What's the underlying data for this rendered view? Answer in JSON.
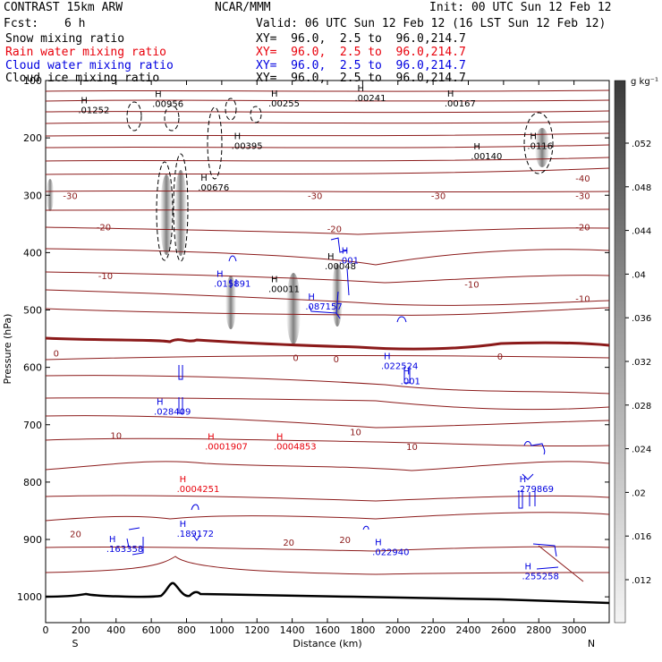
{
  "header": {
    "model": "CONTRAST 15km ARW",
    "center": "NCAR/MMM",
    "init": "Init: 00 UTC Sun 12 Feb 12",
    "fcst_label": "Fcst:",
    "fcst_value": "6 h",
    "valid": "Valid: 06 UTC Sun 12 Feb 12 (16 LST Sun 12 Feb 12)",
    "fields": [
      {
        "name": "Snow mixing ratio",
        "color": "#000000",
        "xy": "XY=  96.0,  2.5 to  96.0,214.7"
      },
      {
        "name": "Rain water mixing ratio",
        "color": "#e8000b",
        "xy": "XY=  96.0,  2.5 to  96.0,214.7"
      },
      {
        "name": "Cloud water mixing ratio",
        "color": "#0000e0",
        "xy": "XY=  96.0,  2.5 to  96.0,214.7"
      },
      {
        "name": "Cloud ice mixing ratio",
        "color": "#000000",
        "xy": "XY=  96.0,  2.5 to  96.0,214.7"
      }
    ]
  },
  "chart_data": {
    "type": "cross-section",
    "xlabel": "Distance (km)",
    "ylabel": "Pressure (hPa)",
    "x_ticks": [
      0,
      200,
      400,
      600,
      800,
      1000,
      1200,
      1400,
      1600,
      1800,
      2000,
      2200,
      2400,
      2600,
      2800,
      3000
    ],
    "y_ticks": [
      100,
      200,
      300,
      400,
      500,
      600,
      700,
      800,
      900,
      1000
    ],
    "xlim": [
      0,
      3200
    ],
    "ylim": [
      100,
      1045
    ],
    "x_endpoints": {
      "left": "S",
      "right": "N"
    },
    "colorbar": {
      "unit": "g kg⁻¹",
      "ticks": [
        ".052",
        ".048",
        ".044",
        ".04",
        ".036",
        ".032",
        ".028",
        ".024",
        ".02",
        ".016",
        ".012"
      ]
    },
    "colors": {
      "temperature_contour": "#8b1a1a",
      "rain": "#e8000b",
      "cloud_water": "#0000e0",
      "snow": "#000000",
      "terrain": "#000000"
    },
    "temperature_labels": [
      {
        "text": "-40",
        "x": 3050,
        "p": 270
      },
      {
        "text": "-30",
        "x": 140,
        "p": 300
      },
      {
        "text": "-30",
        "x": 1530,
        "p": 300
      },
      {
        "text": "-30",
        "x": 2230,
        "p": 300
      },
      {
        "text": "-30",
        "x": 3050,
        "p": 300
      },
      {
        "text": "-20",
        "x": 330,
        "p": 355
      },
      {
        "text": "-20",
        "x": 1640,
        "p": 358
      },
      {
        "text": "-20",
        "x": 3050,
        "p": 355
      },
      {
        "text": "-10",
        "x": 340,
        "p": 440
      },
      {
        "text": "-10",
        "x": 2420,
        "p": 455
      },
      {
        "text": "-10",
        "x": 3050,
        "p": 480
      },
      {
        "text": "0",
        "x": 60,
        "p": 575
      },
      {
        "text": "0",
        "x": 1420,
        "p": 583
      },
      {
        "text": "0",
        "x": 1650,
        "p": 585
      },
      {
        "text": "0",
        "x": 2580,
        "p": 580
      },
      {
        "text": "10",
        "x": 400,
        "p": 718
      },
      {
        "text": "10",
        "x": 1760,
        "p": 712
      },
      {
        "text": "10",
        "x": 2080,
        "p": 738
      },
      {
        "text": "20",
        "x": 170,
        "p": 890
      },
      {
        "text": "20",
        "x": 1380,
        "p": 905
      },
      {
        "text": "20",
        "x": 1700,
        "p": 900
      }
    ],
    "maxima": [
      {
        "field": "snow",
        "value": ".01252",
        "x": 200,
        "p": 140
      },
      {
        "field": "snow",
        "value": ".00956",
        "x": 620,
        "p": 129
      },
      {
        "field": "snow",
        "value": ".00255",
        "x": 1280,
        "p": 128
      },
      {
        "field": "snow",
        "value": ".00241",
        "x": 1770,
        "p": 119
      },
      {
        "field": "snow",
        "value": ".00167",
        "x": 2280,
        "p": 128
      },
      {
        "field": "snow",
        "value": ".0116",
        "x": 2750,
        "p": 202
      },
      {
        "field": "snow",
        "value": ".00395",
        "x": 1070,
        "p": 202
      },
      {
        "field": "snow",
        "value": ".00140",
        "x": 2430,
        "p": 220
      },
      {
        "field": "snow",
        "value": ".00676",
        "x": 880,
        "p": 275
      },
      {
        "field": "snow",
        "value": ".00011",
        "x": 1280,
        "p": 452
      },
      {
        "field": "snow",
        "value": ".00048",
        "x": 1600,
        "p": 412
      },
      {
        "field": "cloud_water",
        "value": ".001",
        "x": 1680,
        "p": 402
      },
      {
        "field": "cloud_water",
        "value": ".015891",
        "x": 970,
        "p": 442
      },
      {
        "field": "cloud_water",
        "value": ".087157",
        "x": 1490,
        "p": 482
      },
      {
        "field": "cloud_water",
        "value": ".022524",
        "x": 1920,
        "p": 586
      },
      {
        "field": "cloud_water",
        "value": ".001",
        "x": 2030,
        "p": 612
      },
      {
        "field": "cloud_water",
        "value": ".028409",
        "x": 630,
        "p": 665
      },
      {
        "field": "cloud_water",
        "value": ".279869",
        "x": 2690,
        "p": 800
      },
      {
        "field": "cloud_water",
        "value": ".189172",
        "x": 760,
        "p": 878
      },
      {
        "field": "cloud_water",
        "value": ".163358",
        "x": 360,
        "p": 905
      },
      {
        "field": "cloud_water",
        "value": ".022940",
        "x": 1870,
        "p": 910
      },
      {
        "field": "cloud_water",
        "value": ".255258",
        "x": 2720,
        "p": 952
      },
      {
        "field": "rain",
        "value": ".0001907",
        "x": 920,
        "p": 726
      },
      {
        "field": "rain",
        "value": ".0004853",
        "x": 1310,
        "p": 726
      },
      {
        "field": "rain",
        "value": ".0004251",
        "x": 760,
        "p": 800
      }
    ]
  }
}
